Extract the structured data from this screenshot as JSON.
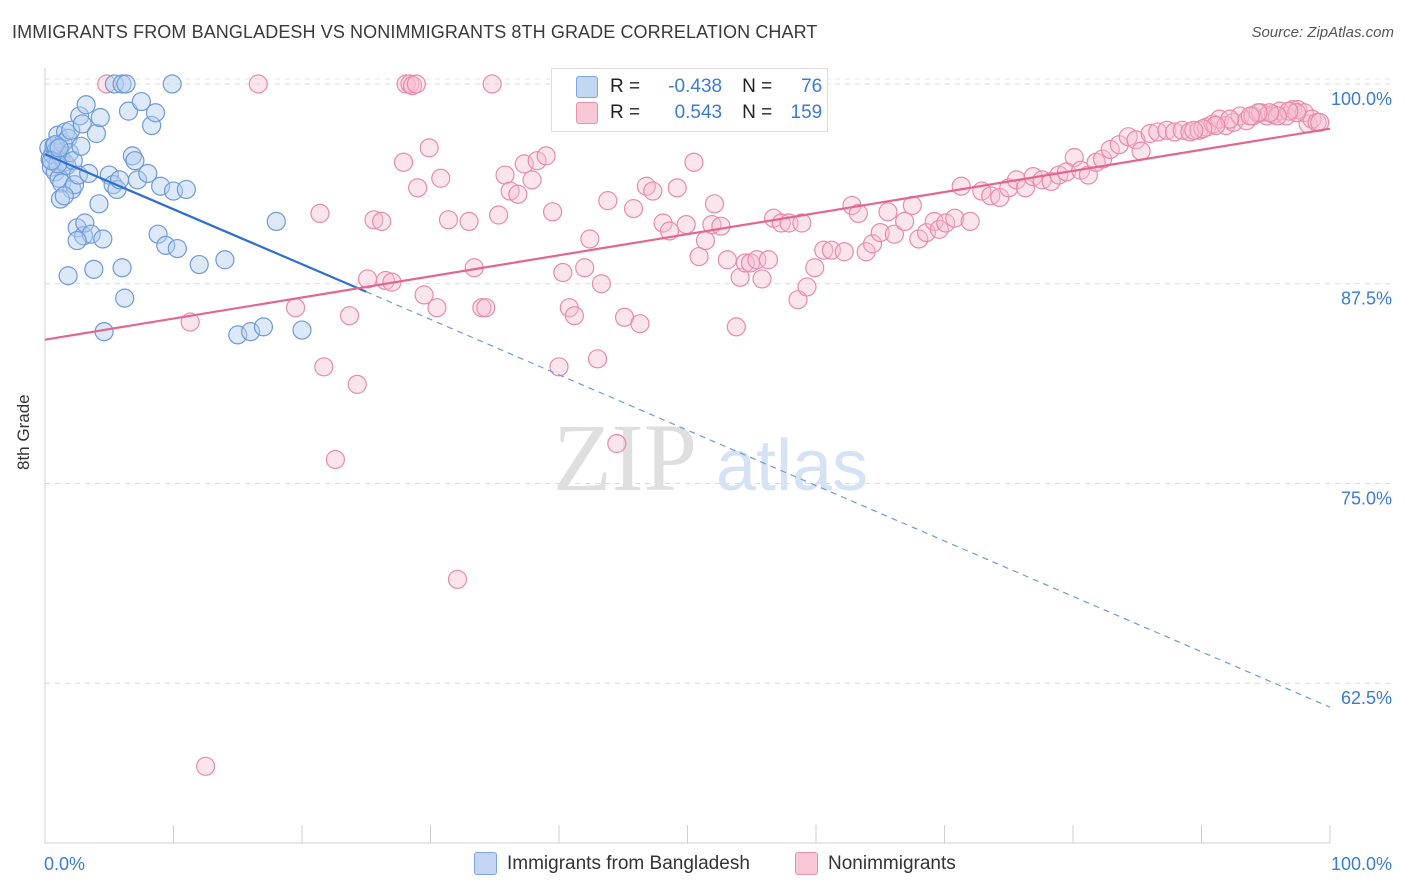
{
  "title": "IMMIGRANTS FROM BANGLADESH VS NONIMMIGRANTS 8TH GRADE CORRELATION CHART",
  "source": "Source: ZipAtlas.com",
  "watermark": {
    "part1": "ZIP",
    "part2": "atlas"
  },
  "stats": [
    {
      "r_label": "R =",
      "r_value": "-0.438",
      "n_label": "N =",
      "n_value": "76",
      "color": "#7aa6e0",
      "fill": "#c3d7f3"
    },
    {
      "r_label": "R =",
      "r_value": "0.543",
      "n_label": "N =",
      "n_value": "159",
      "color": "#ec8fae",
      "fill": "#f8c8d7"
    }
  ],
  "legend": [
    {
      "label": "Immigrants from Bangladesh",
      "color": "#7aa6e0",
      "fill": "#c3d7f3"
    },
    {
      "label": "Nonimmigrants",
      "color": "#ec8fae",
      "fill": "#f8c8d7"
    }
  ],
  "chart_data": {
    "type": "scatter",
    "title": "IMMIGRANTS FROM BANGLADESH VS NONIMMIGRANTS 8TH GRADE CORRELATION CHART",
    "xlabel": "",
    "ylabel": "8th Grade",
    "xlim": [
      0,
      100
    ],
    "ylim": [
      52.5,
      101
    ],
    "x_tick_labels": [
      "0.0%",
      "100.0%"
    ],
    "y_ticks": [
      62.5,
      75.0,
      87.5,
      100.0
    ],
    "y_tick_labels": [
      "62.5%",
      "75.0%",
      "87.5%",
      "100.0%"
    ],
    "grid": true,
    "legend_position": "bottom",
    "series": [
      {
        "name": "Immigrants from Bangladesh",
        "color": "#5b8fd6",
        "trend": {
          "x0": 0.0,
          "y0": 95.6,
          "x1": 25.0,
          "y1": 87.0,
          "x_dash_end": 100.0,
          "y_dash_end": 61.0
        },
        "points": [
          [
            0.3,
            96
          ],
          [
            0.4,
            95.3
          ],
          [
            0.5,
            94.8
          ],
          [
            0.6,
            95.6
          ],
          [
            0.7,
            96.1
          ],
          [
            0.8,
            94.5
          ],
          [
            0.9,
            95.9
          ],
          [
            1.0,
            96.8
          ],
          [
            1.1,
            94.1
          ],
          [
            1.2,
            95.5
          ],
          [
            1.3,
            93.8
          ],
          [
            1.4,
            96.3
          ],
          [
            1.5,
            95.1
          ],
          [
            1.6,
            97.0
          ],
          [
            1.7,
            94.9
          ],
          [
            1.8,
            96.6
          ],
          [
            1.9,
            95.7
          ],
          [
            2.0,
            97.1
          ],
          [
            2.1,
            93.4
          ],
          [
            2.2,
            95.2
          ],
          [
            2.3,
            93.7
          ],
          [
            2.5,
            91.0
          ],
          [
            2.6,
            94.3
          ],
          [
            2.7,
            98.0
          ],
          [
            2.8,
            96.1
          ],
          [
            2.9,
            97.5
          ],
          [
            3.0,
            90.5
          ],
          [
            3.1,
            91.3
          ],
          [
            3.2,
            98.7
          ],
          [
            3.4,
            94.4
          ],
          [
            3.6,
            90.6
          ],
          [
            3.8,
            88.4
          ],
          [
            4.0,
            96.9
          ],
          [
            4.2,
            92.5
          ],
          [
            4.3,
            97.9
          ],
          [
            4.5,
            90.3
          ],
          [
            1.2,
            92.8
          ],
          [
            1.8,
            88.0
          ],
          [
            2.5,
            90.2
          ],
          [
            4.6,
            84.5
          ],
          [
            5.0,
            94.3
          ],
          [
            5.3,
            93.7
          ],
          [
            5.6,
            93.4
          ],
          [
            5.8,
            94.0
          ],
          [
            6.0,
            88.5
          ],
          [
            6.2,
            86.6
          ],
          [
            6.5,
            98.3
          ],
          [
            6.8,
            95.5
          ],
          [
            7.0,
            95.2
          ],
          [
            7.2,
            94.0
          ],
          [
            7.5,
            98.9
          ],
          [
            8.0,
            94.4
          ],
          [
            8.3,
            97.4
          ],
          [
            8.6,
            98.2
          ],
          [
            8.8,
            90.6
          ],
          [
            9.0,
            93.6
          ],
          [
            9.4,
            89.9
          ],
          [
            10.0,
            93.3
          ],
          [
            10.3,
            89.7
          ],
          [
            11.0,
            93.4
          ],
          [
            12.0,
            88.7
          ],
          [
            14.0,
            89.0
          ],
          [
            15.0,
            84.3
          ],
          [
            16.0,
            84.5
          ],
          [
            17.0,
            84.8
          ],
          [
            18.0,
            91.4
          ],
          [
            20.0,
            84.6
          ],
          [
            5.4,
            100
          ],
          [
            6.0,
            100
          ],
          [
            6.3,
            100
          ],
          [
            9.9,
            100
          ],
          [
            1.0,
            95.0
          ],
          [
            1.5,
            93.0
          ],
          [
            0.8,
            96.2
          ],
          [
            0.5,
            95.2
          ],
          [
            1.1,
            96.0
          ]
        ]
      },
      {
        "name": "Nonimmigrants",
        "color": "#e76f97",
        "trend": {
          "x0": 0.0,
          "y0": 84.0,
          "x1": 100.0,
          "y1": 97.2
        },
        "points": [
          [
            4.8,
            100
          ],
          [
            11.3,
            85.1
          ],
          [
            12.5,
            57.3
          ],
          [
            16.6,
            100
          ],
          [
            19.5,
            86.0
          ],
          [
            21.4,
            91.9
          ],
          [
            21.7,
            82.3
          ],
          [
            22.6,
            76.5
          ],
          [
            23.7,
            85.5
          ],
          [
            24.3,
            81.2
          ],
          [
            25.1,
            87.8
          ],
          [
            25.6,
            91.5
          ],
          [
            26.2,
            91.4
          ],
          [
            26.5,
            87.7
          ],
          [
            27.0,
            87.6
          ],
          [
            27.9,
            95.1
          ],
          [
            28.1,
            100
          ],
          [
            28.4,
            100
          ],
          [
            28.6,
            99.9
          ],
          [
            28.9,
            100
          ],
          [
            29.0,
            93.5
          ],
          [
            29.5,
            86.8
          ],
          [
            29.9,
            96.0
          ],
          [
            30.5,
            86.0
          ],
          [
            30.8,
            94.1
          ],
          [
            31.4,
            91.5
          ],
          [
            32.1,
            69.0
          ],
          [
            33.0,
            91.4
          ],
          [
            33.4,
            88.5
          ],
          [
            34.0,
            86.0
          ],
          [
            34.3,
            86.0
          ],
          [
            34.8,
            100
          ],
          [
            35.3,
            91.8
          ],
          [
            35.8,
            94.3
          ],
          [
            36.2,
            93.3
          ],
          [
            36.8,
            93.1
          ],
          [
            37.3,
            95.0
          ],
          [
            37.9,
            94.0
          ],
          [
            38.3,
            95.2
          ],
          [
            39.0,
            95.5
          ],
          [
            39.5,
            92.0
          ],
          [
            40.0,
            82.3
          ],
          [
            40.3,
            88.2
          ],
          [
            40.8,
            86.0
          ],
          [
            41.2,
            85.5
          ],
          [
            42.0,
            88.5
          ],
          [
            42.4,
            90.3
          ],
          [
            43.0,
            82.8
          ],
          [
            43.3,
            87.5
          ],
          [
            43.8,
            92.7
          ],
          [
            44.5,
            77.5
          ],
          [
            45.1,
            85.4
          ],
          [
            45.8,
            92.2
          ],
          [
            46.3,
            85.0
          ],
          [
            46.8,
            93.6
          ],
          [
            47.3,
            93.3
          ],
          [
            48.1,
            91.3
          ],
          [
            48.6,
            90.8
          ],
          [
            49.2,
            93.5
          ],
          [
            49.9,
            91.2
          ],
          [
            50.5,
            95.1
          ],
          [
            50.9,
            89.2
          ],
          [
            51.4,
            90.2
          ],
          [
            51.9,
            91.2
          ],
          [
            52.1,
            92.5
          ],
          [
            52.6,
            91.1
          ],
          [
            53.1,
            89.0
          ],
          [
            53.8,
            84.8
          ],
          [
            54.1,
            87.9
          ],
          [
            54.5,
            88.8
          ],
          [
            54.9,
            88.8
          ],
          [
            55.4,
            89.0
          ],
          [
            55.8,
            87.8
          ],
          [
            56.3,
            89.0
          ],
          [
            56.7,
            91.6
          ],
          [
            57.3,
            91.3
          ],
          [
            57.9,
            91.3
          ],
          [
            58.6,
            86.5
          ],
          [
            58.9,
            91.3
          ],
          [
            59.3,
            87.3
          ],
          [
            59.9,
            88.5
          ],
          [
            60.6,
            89.6
          ],
          [
            61.2,
            89.6
          ],
          [
            62.2,
            89.5
          ],
          [
            62.8,
            92.4
          ],
          [
            63.3,
            91.9
          ],
          [
            63.9,
            89.5
          ],
          [
            64.4,
            90.0
          ],
          [
            65.0,
            90.7
          ],
          [
            65.6,
            92.0
          ],
          [
            66.1,
            90.6
          ],
          [
            66.9,
            91.4
          ],
          [
            67.5,
            92.4
          ],
          [
            68.0,
            90.3
          ],
          [
            68.6,
            90.7
          ],
          [
            69.2,
            91.4
          ],
          [
            69.6,
            90.9
          ],
          [
            70.1,
            91.3
          ],
          [
            70.8,
            91.6
          ],
          [
            71.3,
            93.6
          ],
          [
            72.0,
            91.4
          ],
          [
            72.9,
            93.3
          ],
          [
            73.6,
            93.0
          ],
          [
            74.3,
            92.9
          ],
          [
            75.0,
            93.5
          ],
          [
            75.6,
            94.0
          ],
          [
            76.3,
            93.5
          ],
          [
            76.9,
            94.2
          ],
          [
            77.6,
            94.0
          ],
          [
            78.3,
            93.9
          ],
          [
            78.9,
            94.3
          ],
          [
            79.5,
            94.5
          ],
          [
            80.1,
            95.4
          ],
          [
            80.6,
            94.6
          ],
          [
            81.2,
            94.3
          ],
          [
            81.8,
            95.1
          ],
          [
            82.3,
            95.3
          ],
          [
            82.9,
            95.9
          ],
          [
            83.6,
            96.2
          ],
          [
            84.3,
            96.7
          ],
          [
            84.9,
            96.5
          ],
          [
            85.3,
            95.8
          ],
          [
            86.0,
            96.9
          ],
          [
            86.6,
            97.0
          ],
          [
            87.3,
            97.1
          ],
          [
            87.9,
            97.0
          ],
          [
            88.5,
            97.1
          ],
          [
            89.1,
            97.0
          ],
          [
            89.8,
            97.1
          ],
          [
            90.4,
            97.3
          ],
          [
            90.9,
            97.5
          ],
          [
            91.4,
            97.8
          ],
          [
            91.9,
            97.4
          ],
          [
            92.5,
            97.6
          ],
          [
            93.0,
            98.0
          ],
          [
            93.5,
            97.7
          ],
          [
            94.0,
            98.0
          ],
          [
            94.6,
            98.2
          ],
          [
            95.1,
            98.0
          ],
          [
            95.6,
            98.1
          ],
          [
            96.1,
            98.3
          ],
          [
            96.6,
            98.0
          ],
          [
            97.1,
            98.4
          ],
          [
            97.5,
            98.4
          ],
          [
            98.0,
            98.2
          ],
          [
            98.3,
            97.5
          ],
          [
            98.6,
            97.8
          ],
          [
            99.0,
            97.6
          ],
          [
            99.2,
            97.6
          ],
          [
            97.4,
            98.2
          ],
          [
            96.8,
            98.3
          ],
          [
            95.9,
            98.0
          ],
          [
            95.3,
            98.2
          ],
          [
            94.4,
            98.2
          ],
          [
            93.8,
            98.0
          ],
          [
            92.2,
            97.8
          ],
          [
            91.1,
            97.4
          ],
          [
            90.1,
            97.2
          ],
          [
            89.4,
            97.1
          ]
        ]
      }
    ]
  }
}
